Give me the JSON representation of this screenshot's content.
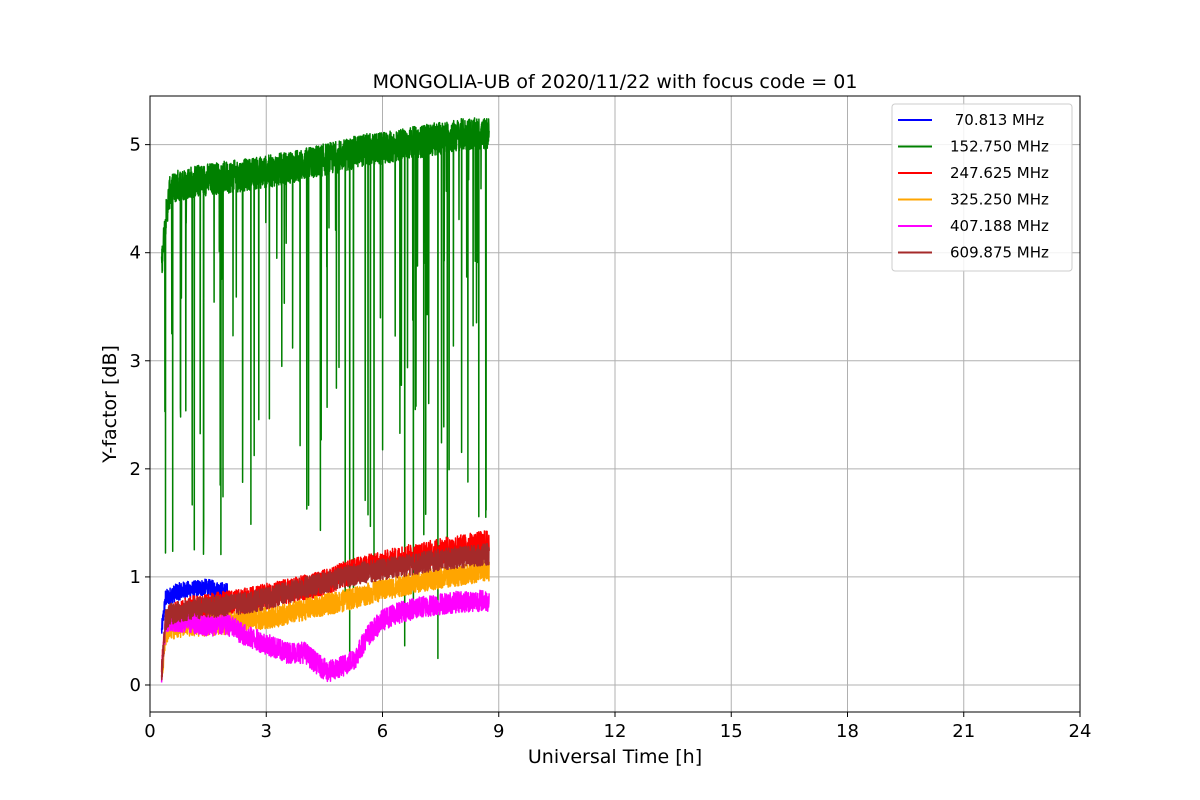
{
  "chart_data": {
    "type": "line",
    "title": "MONGOLIA-UB of 2020/11/22 with focus code = 01",
    "xlabel": "Universal Time [h]",
    "ylabel": "Y-factor [dB]",
    "xlim": [
      0,
      24
    ],
    "ylim": [
      -0.25,
      5.45
    ],
    "xticks": [
      0,
      3,
      6,
      9,
      12,
      15,
      18,
      21,
      24
    ],
    "yticks": [
      0,
      1,
      2,
      3,
      4,
      5
    ],
    "xtick_labels": [
      "0",
      "3",
      "6",
      "9",
      "12",
      "15",
      "18",
      "21",
      "24"
    ],
    "ytick_labels": [
      "0",
      "1",
      "2",
      "3",
      "4",
      "5"
    ],
    "grid": true,
    "legend_position": "top-right",
    "series": [
      {
        "name": " 70.813 MHz",
        "color": "#0000ff",
        "noise": 0.08,
        "x": [
          0.3,
          0.4,
          0.5,
          0.7,
          0.9,
          1.1,
          1.3,
          1.5,
          1.7,
          1.9,
          2.0
        ],
        "y": [
          0.5,
          0.8,
          0.82,
          0.86,
          0.88,
          0.88,
          0.9,
          0.9,
          0.88,
          0.87,
          0.86
        ]
      },
      {
        "name": "152.750 MHz",
        "color": "#008000",
        "noise": 0.15,
        "dips": true,
        "x": [
          0.3,
          0.4,
          0.5,
          0.7,
          1.0,
          1.5,
          2.0,
          2.5,
          3.0,
          3.5,
          4.0,
          4.5,
          5.0,
          5.5,
          6.0,
          6.5,
          7.0,
          7.5,
          8.0,
          8.5,
          8.75
        ],
        "y": [
          3.9,
          4.3,
          4.55,
          4.62,
          4.65,
          4.68,
          4.7,
          4.72,
          4.75,
          4.78,
          4.82,
          4.86,
          4.9,
          4.95,
          4.96,
          5.0,
          5.03,
          5.06,
          5.09,
          5.1,
          5.1
        ]
      },
      {
        "name": "247.625 MHz",
        "color": "#ff0000",
        "noise": 0.12,
        "x": [
          0.3,
          0.4,
          0.5,
          1.0,
          1.5,
          2.0,
          2.5,
          3.0,
          3.5,
          4.0,
          4.5,
          5.0,
          5.5,
          6.0,
          6.5,
          7.0,
          7.5,
          8.0,
          8.5,
          8.75
        ],
        "y": [
          0.15,
          0.55,
          0.62,
          0.7,
          0.73,
          0.75,
          0.78,
          0.82,
          0.86,
          0.9,
          0.95,
          1.02,
          1.08,
          1.12,
          1.17,
          1.2,
          1.24,
          1.27,
          1.3,
          1.32
        ]
      },
      {
        "name": "325.250 MHz",
        "color": "#ffa500",
        "noise": 0.1,
        "x": [
          0.3,
          0.4,
          0.5,
          1.0,
          1.5,
          2.0,
          2.5,
          3.0,
          3.5,
          4.0,
          4.5,
          5.0,
          5.5,
          6.0,
          6.5,
          7.0,
          7.5,
          8.0,
          8.5,
          8.75
        ],
        "y": [
          0.1,
          0.45,
          0.52,
          0.55,
          0.55,
          0.57,
          0.6,
          0.62,
          0.65,
          0.7,
          0.74,
          0.78,
          0.83,
          0.88,
          0.92,
          0.96,
          0.99,
          1.02,
          1.05,
          1.06
        ]
      },
      {
        "name": "407.188 MHz",
        "color": "#ff00ff",
        "noise": 0.1,
        "x": [
          0.3,
          0.4,
          0.5,
          1.0,
          1.5,
          2.0,
          2.5,
          3.0,
          3.5,
          4.0,
          4.3,
          4.6,
          5.0,
          5.3,
          5.6,
          6.0,
          6.5,
          7.0,
          7.5,
          8.0,
          8.5,
          8.75
        ],
        "y": [
          0.1,
          0.55,
          0.6,
          0.58,
          0.55,
          0.56,
          0.45,
          0.38,
          0.3,
          0.3,
          0.2,
          0.12,
          0.18,
          0.25,
          0.45,
          0.6,
          0.68,
          0.72,
          0.75,
          0.77,
          0.78,
          0.78
        ]
      },
      {
        "name": "609.875 MHz",
        "color": "#a52a2a",
        "noise": 0.1,
        "x": [
          0.3,
          0.4,
          0.5,
          1.0,
          1.5,
          2.0,
          2.5,
          3.0,
          3.5,
          4.0,
          4.5,
          5.0,
          5.5,
          6.0,
          6.5,
          7.0,
          7.5,
          8.0,
          8.5,
          8.75
        ],
        "y": [
          0.1,
          0.6,
          0.65,
          0.7,
          0.72,
          0.74,
          0.76,
          0.8,
          0.85,
          0.9,
          0.95,
          1.0,
          1.04,
          1.07,
          1.1,
          1.13,
          1.16,
          1.18,
          1.2,
          1.21
        ]
      }
    ]
  }
}
